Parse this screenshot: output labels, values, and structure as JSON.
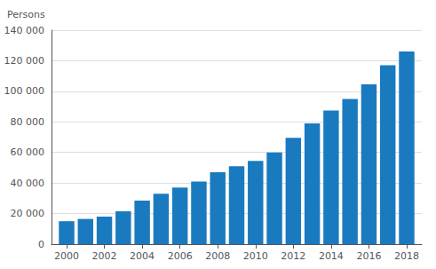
{
  "chart_data": {
    "type": "bar",
    "ylabel": "Persons",
    "x": [
      2000,
      2001,
      2002,
      2003,
      2004,
      2005,
      2006,
      2007,
      2008,
      2009,
      2010,
      2011,
      2012,
      2013,
      2014,
      2015,
      2016,
      2017,
      2018
    ],
    "values": [
      15000,
      16500,
      18000,
      21500,
      28500,
      33000,
      37000,
      41000,
      47000,
      51000,
      54500,
      60000,
      69500,
      79000,
      87500,
      95000,
      104500,
      117000,
      126000
    ],
    "color": "#1a7abf",
    "xlim": [
      1999.2,
      2018.8
    ],
    "xticks": [
      2000,
      2002,
      2004,
      2006,
      2008,
      2010,
      2012,
      2014,
      2016,
      2018
    ],
    "ylim": [
      0,
      140000
    ],
    "yticks": [
      0,
      {
        "value": 20000,
        "label": "20 000"
      },
      {
        "value": 40000,
        "label": "40 000"
      },
      {
        "value": 60000,
        "label": "60 000"
      },
      {
        "value": 80000,
        "label": "80 000"
      },
      {
        "value": 100000,
        "label": "100 000"
      },
      {
        "value": 120000,
        "label": "120 000"
      },
      {
        "value": 140000,
        "label": "140 000"
      }
    ],
    "grid": true
  }
}
